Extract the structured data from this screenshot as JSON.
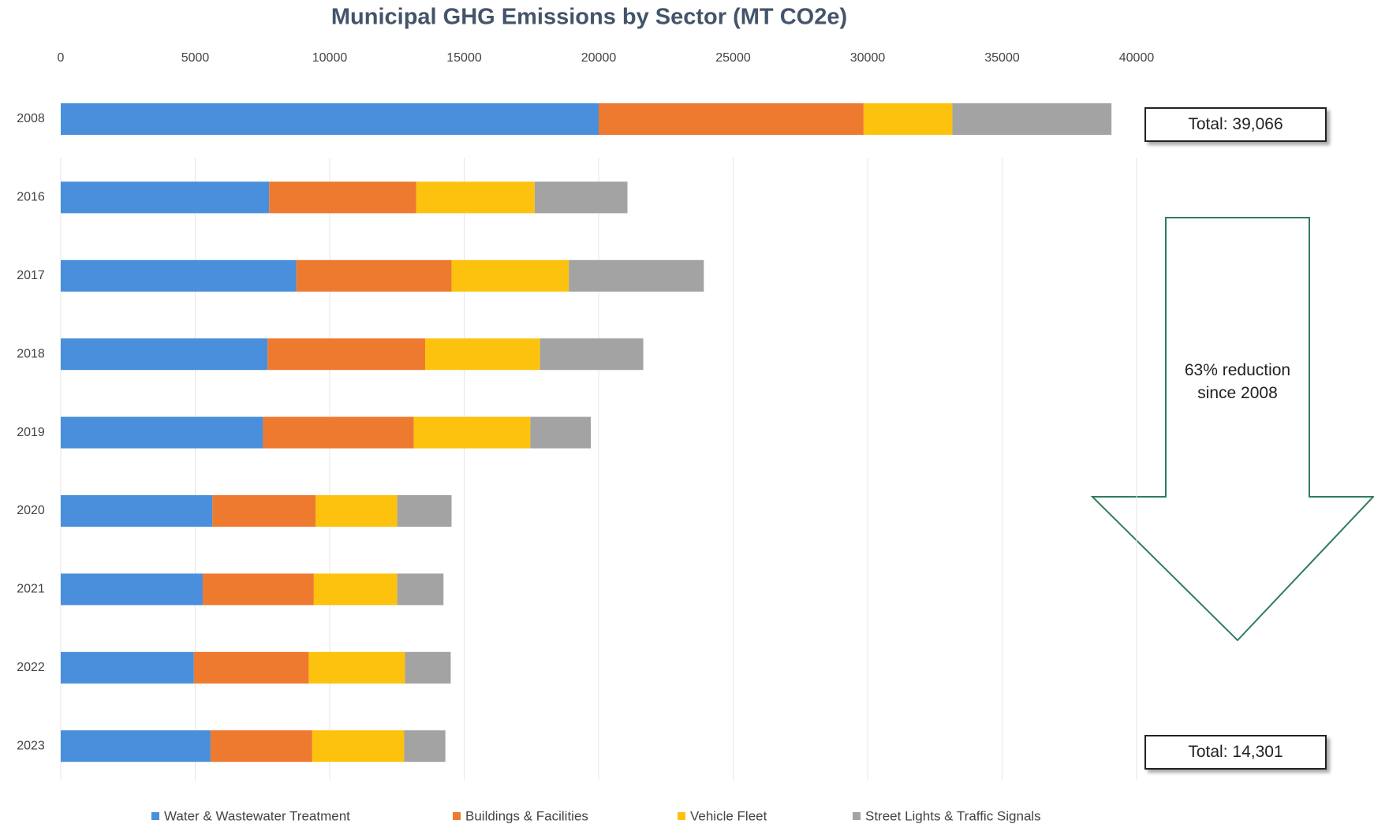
{
  "chart_data": {
    "type": "stacked-bar-horizontal",
    "title": "Municipal  GHG Emissions by Sector (MT CO2e)",
    "categories": [
      "2008",
      "2016",
      "2017",
      "2018",
      "2019",
      "2020",
      "2021",
      "2022",
      "2023"
    ],
    "series": [
      {
        "name": "Water & Wastewater Treatment",
        "color": "#4a8fdb",
        "values": [
          20000,
          7750,
          8760,
          7690,
          7520,
          5640,
          5280,
          4950,
          5570
        ]
      },
      {
        "name": "Buildings & Facilities",
        "color": "#ee7a30",
        "values": [
          9850,
          5470,
          5770,
          5860,
          5610,
          3840,
          4130,
          4270,
          3780
        ]
      },
      {
        "name": "Vehicle Fleet",
        "color": "#fdc20e",
        "values": [
          3300,
          4400,
          4360,
          4270,
          4330,
          3030,
          3100,
          3580,
          3420
        ]
      },
      {
        "name": "Street Lights & Traffic Signals",
        "color": "#a3a3a3",
        "values": [
          5916,
          3450,
          5020,
          3840,
          2250,
          2020,
          1720,
          1700,
          1531
        ]
      }
    ],
    "xlim": [
      0,
      40000
    ],
    "xticks": [
      0,
      5000,
      10000,
      15000,
      20000,
      25000,
      30000,
      35000,
      40000
    ],
    "grid": true,
    "legend": "bottom",
    "annotations": [
      "Total: 39,066",
      "63% reduction since 2008",
      "Total: 14,301"
    ]
  }
}
